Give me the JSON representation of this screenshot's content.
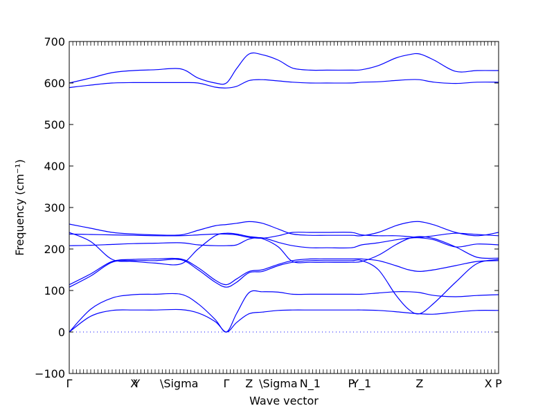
{
  "chart_data": {
    "type": "line",
    "title": "",
    "xlabel": "Wave vector",
    "ylabel": "Frequency (cm⁻¹)",
    "ylim": [
      -100,
      700
    ],
    "yticks": [
      -100,
      0,
      100,
      200,
      300,
      400,
      500,
      600,
      700
    ],
    "xlim": [
      0,
      1
    ],
    "grid": false,
    "line_color": "#0000ff",
    "zero_line": {
      "y": 0,
      "style": "dotted",
      "color": "#0000ff"
    },
    "high_symmetry_points": [
      {
        "label": "Γ",
        "x": 0.0
      },
      {
        "label": "X",
        "x": 0.151
      },
      {
        "label": "Y",
        "x": 0.157
      },
      {
        "label": "\\Sigma",
        "x": 0.256
      },
      {
        "label": "Γ",
        "x": 0.366
      },
      {
        "label": "Z",
        "x": 0.419
      },
      {
        "label": "\\Sigma",
        "x": 0.487
      },
      {
        "label": "N_1",
        "x": 0.561
      },
      {
        "label": "P",
        "x": 0.657
      },
      {
        "label": "Y_1",
        "x": 0.681
      },
      {
        "label": "Z",
        "x": 0.816
      },
      {
        "label": "X",
        "x": 0.976
      },
      {
        "label": "P",
        "x": 1.0
      }
    ],
    "series": [
      {
        "x": [
          0,
          0.05,
          0.1,
          0.15,
          0.2,
          0.26,
          0.3,
          0.34,
          0.366,
          0.39,
          0.419,
          0.45,
          0.487,
          0.52,
          0.561,
          0.6,
          0.657,
          0.681,
          0.72,
          0.76,
          0.79,
          0.816,
          0.85,
          0.9,
          0.95,
          1.0
        ],
        "y": [
          0,
          38,
          52,
          53,
          53,
          54,
          46,
          25,
          0,
          23,
          44,
          48,
          52,
          53,
          53,
          53,
          53,
          53,
          52,
          49,
          46,
          44,
          43,
          48,
          52,
          52
        ]
      },
      {
        "x": [
          0,
          0.05,
          0.1,
          0.15,
          0.2,
          0.26,
          0.3,
          0.34,
          0.366,
          0.39,
          0.419,
          0.45,
          0.487,
          0.52,
          0.561,
          0.6,
          0.657,
          0.681,
          0.72,
          0.76,
          0.79,
          0.816,
          0.85,
          0.9,
          0.95,
          1.0
        ],
        "y": [
          0,
          55,
          82,
          90,
          91,
          91,
          68,
          30,
          0,
          45,
          95,
          97,
          96,
          91,
          91,
          91,
          91,
          91,
          94,
          97,
          97,
          95,
          88,
          85,
          88,
          90
        ]
      },
      {
        "x": [
          0,
          0.05,
          0.1,
          0.15,
          0.2,
          0.26,
          0.3,
          0.34,
          0.366,
          0.39,
          0.419,
          0.45,
          0.487,
          0.52,
          0.561,
          0.6,
          0.657,
          0.681,
          0.72,
          0.76,
          0.79,
          0.816,
          0.85,
          0.9,
          0.95,
          1.0
        ],
        "y": [
          108,
          135,
          168,
          172,
          172,
          174,
          150,
          120,
          108,
          120,
          143,
          146,
          160,
          168,
          172,
          172,
          172,
          172,
          150,
          90,
          55,
          44,
          70,
          120,
          165,
          175
        ]
      },
      {
        "x": [
          0,
          0.05,
          0.1,
          0.15,
          0.2,
          0.26,
          0.3,
          0.34,
          0.366,
          0.39,
          0.419,
          0.45,
          0.487,
          0.52,
          0.561,
          0.6,
          0.657,
          0.681,
          0.72,
          0.76,
          0.79,
          0.816,
          0.85,
          0.9,
          0.95,
          1.0
        ],
        "y": [
          114,
          140,
          170,
          175,
          176,
          176,
          155,
          125,
          114,
          128,
          146,
          150,
          163,
          172,
          176,
          176,
          176,
          176,
          172,
          160,
          150,
          146,
          150,
          160,
          170,
          172
        ]
      },
      {
        "x": [
          0,
          0.05,
          0.1,
          0.15,
          0.2,
          0.26,
          0.3,
          0.34,
          0.366,
          0.39,
          0.419,
          0.45,
          0.487,
          0.52,
          0.561,
          0.6,
          0.657,
          0.681,
          0.72,
          0.76,
          0.79,
          0.816,
          0.85,
          0.9,
          0.95,
          1.0
        ],
        "y": [
          240,
          218,
          175,
          170,
          166,
          164,
          200,
          232,
          238,
          236,
          230,
          225,
          205,
          170,
          168,
          168,
          168,
          170,
          185,
          210,
          225,
          230,
          225,
          205,
          180,
          178
        ]
      },
      {
        "x": [
          0,
          0.05,
          0.1,
          0.15,
          0.2,
          0.26,
          0.3,
          0.34,
          0.366,
          0.39,
          0.419,
          0.45,
          0.487,
          0.52,
          0.561,
          0.6,
          0.657,
          0.681,
          0.72,
          0.76,
          0.79,
          0.816,
          0.85,
          0.9,
          0.95,
          1.0
        ],
        "y": [
          208,
          209,
          211,
          213,
          214,
          215,
          210,
          208,
          208,
          210,
          224,
          227,
          216,
          208,
          203,
          203,
          203,
          210,
          215,
          222,
          226,
          227,
          222,
          205,
          212,
          210
        ]
      },
      {
        "x": [
          0,
          0.05,
          0.1,
          0.15,
          0.2,
          0.26,
          0.3,
          0.34,
          0.366,
          0.39,
          0.419,
          0.45,
          0.487,
          0.52,
          0.561,
          0.6,
          0.657,
          0.681,
          0.72,
          0.76,
          0.79,
          0.816,
          0.85,
          0.9,
          0.95,
          1.0
        ],
        "y": [
          236,
          235,
          234,
          233,
          232,
          232,
          234,
          236,
          236,
          234,
          228,
          226,
          232,
          240,
          240,
          240,
          240,
          234,
          232,
          232,
          230,
          228,
          232,
          238,
          235,
          232
        ]
      },
      {
        "x": [
          0,
          0.05,
          0.1,
          0.15,
          0.2,
          0.26,
          0.3,
          0.34,
          0.366,
          0.39,
          0.419,
          0.45,
          0.487,
          0.52,
          0.561,
          0.6,
          0.657,
          0.681,
          0.72,
          0.76,
          0.79,
          0.816,
          0.85,
          0.9,
          0.95,
          1.0
        ],
        "y": [
          260,
          250,
          240,
          236,
          234,
          234,
          245,
          256,
          259,
          262,
          266,
          262,
          248,
          236,
          233,
          233,
          233,
          232,
          240,
          256,
          264,
          266,
          258,
          240,
          232,
          240
        ]
      },
      {
        "x": [
          0,
          0.05,
          0.1,
          0.15,
          0.2,
          0.26,
          0.3,
          0.34,
          0.366,
          0.39,
          0.419,
          0.45,
          0.487,
          0.52,
          0.561,
          0.6,
          0.657,
          0.681,
          0.72,
          0.76,
          0.79,
          0.816,
          0.85,
          0.9,
          0.95,
          1.0
        ],
        "y": [
          589,
          595,
          600,
          601,
          601,
          601,
          600,
          590,
          588,
          592,
          606,
          608,
          605,
          602,
          600,
          600,
          600,
          602,
          603,
          606,
          608,
          608,
          602,
          599,
          602,
          602
        ]
      },
      {
        "x": [
          0,
          0.05,
          0.1,
          0.15,
          0.2,
          0.26,
          0.3,
          0.34,
          0.366,
          0.39,
          0.419,
          0.45,
          0.487,
          0.52,
          0.561,
          0.6,
          0.657,
          0.681,
          0.72,
          0.76,
          0.79,
          0.816,
          0.85,
          0.9,
          0.95,
          1.0
        ],
        "y": [
          600,
          612,
          625,
          630,
          632,
          634,
          612,
          600,
          600,
          635,
          670,
          668,
          655,
          636,
          631,
          631,
          631,
          632,
          642,
          660,
          668,
          670,
          655,
          628,
          630,
          630
        ]
      }
    ]
  }
}
